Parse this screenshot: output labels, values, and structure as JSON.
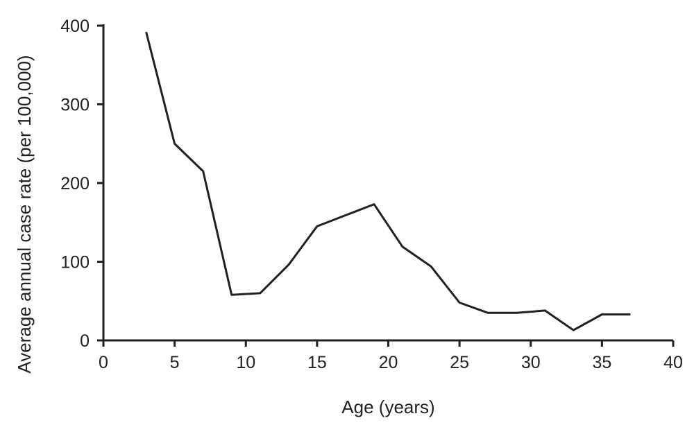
{
  "chart_data": {
    "type": "line",
    "title": "",
    "xlabel": "Age (years)",
    "ylabel": "Average annual case rate (per 100,000)",
    "xlim": [
      0,
      40
    ],
    "ylim": [
      0,
      400
    ],
    "x_ticks": [
      "0",
      "5",
      "10",
      "15",
      "20",
      "25",
      "30",
      "35",
      "40"
    ],
    "y_ticks": [
      "0",
      "100",
      "200",
      "300",
      "400"
    ],
    "grid": false,
    "legend": "none",
    "line_color": "#231f20",
    "series": [
      {
        "x": [
          3,
          5,
          7,
          9,
          11,
          13,
          15,
          17,
          19,
          21,
          23,
          25,
          27,
          29,
          31,
          33,
          35,
          37
        ],
        "y": [
          392,
          250,
          215,
          58,
          60,
          96,
          145,
          159,
          173,
          119,
          94,
          48,
          35,
          35,
          38,
          13,
          33,
          33
        ]
      }
    ]
  }
}
